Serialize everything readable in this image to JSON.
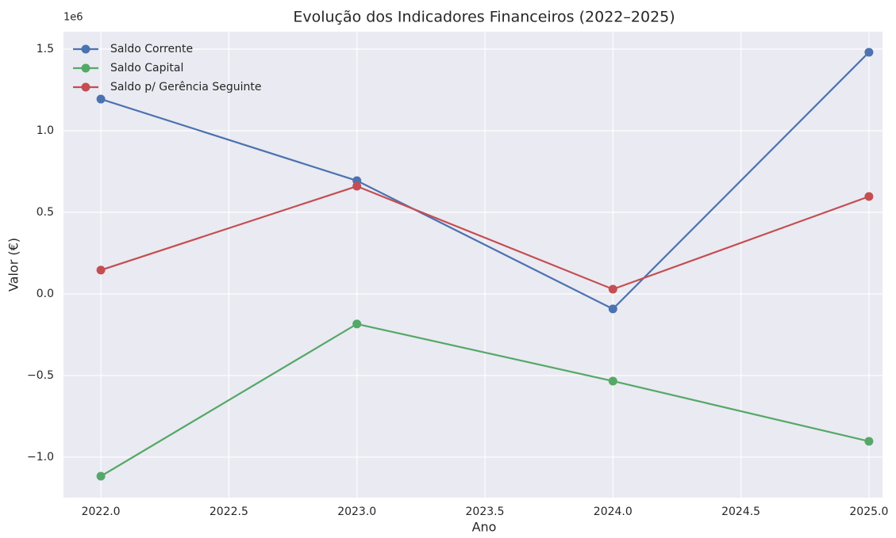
{
  "chart_data": {
    "type": "line",
    "title": "Evolução dos Indicadores Financeiros (2022–2025)",
    "xlabel": "Ano",
    "ylabel": "Valor (€)",
    "offset_label": "1e6",
    "x": [
      2022,
      2023,
      2024,
      2025
    ],
    "series": [
      {
        "name": "Saldo Corrente",
        "color": "#4c72b0",
        "values": [
          1194000,
          694000,
          -92000,
          1481000
        ]
      },
      {
        "name": "Saldo Capital",
        "color": "#55a868",
        "values": [
          -1117000,
          -184000,
          -534000,
          -903000
        ]
      },
      {
        "name": "Saldo p/ Gerência Seguinte",
        "color": "#c44e52",
        "values": [
          146000,
          660000,
          29000,
          597000
        ]
      }
    ],
    "xlim": [
      2021.854,
      2025.053
    ],
    "xticks": [
      {
        "value": 2022,
        "label": "2022.0"
      },
      {
        "value": 2022.5,
        "label": "2022.5"
      },
      {
        "value": 2023,
        "label": "2023.0"
      },
      {
        "value": 2023.5,
        "label": "2023.5"
      },
      {
        "value": 2024,
        "label": "2024.0"
      },
      {
        "value": 2024.5,
        "label": "2024.5"
      },
      {
        "value": 2025,
        "label": "2025.0"
      }
    ],
    "ylim": [
      -1248000,
      1607000
    ],
    "yticks": [
      {
        "value": -1000000,
        "label": "−1.0"
      },
      {
        "value": -500000,
        "label": "−0.5"
      },
      {
        "value": 0,
        "label": "0.0"
      },
      {
        "value": 500000,
        "label": "0.5"
      },
      {
        "value": 1000000,
        "label": "1.0"
      },
      {
        "value": 1500000,
        "label": "1.5"
      }
    ],
    "grid": true,
    "legend": "upper left"
  }
}
